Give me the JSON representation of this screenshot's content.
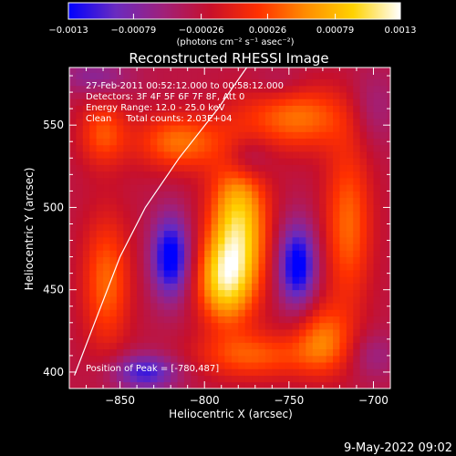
{
  "colorbar": {
    "ticks": [
      "-0.0013",
      "-0.00079",
      "-0.00026",
      "0.00026",
      "0.00079",
      "0.0013"
    ],
    "units": "(photons cm⁻² s⁻¹ asec⁻²)",
    "range": [
      -0.0013,
      0.0013
    ],
    "colors": [
      "#0000ff",
      "#6a2bbf",
      "#a0207a",
      "#c8102a",
      "#ff3000",
      "#ff8c00",
      "#ffd200",
      "#ffffff"
    ]
  },
  "chart_data": {
    "type": "heatmap",
    "title": "Reconstructed RHESSI Image",
    "xlabel": "Heliocentric X (arcsec)",
    "ylabel": "Heliocentric Y (arcsec)",
    "xlim": [
      -880,
      -690
    ],
    "ylim": [
      390,
      585
    ],
    "xticks": [
      -850,
      -800,
      -750,
      -700
    ],
    "yticks": [
      400,
      450,
      500,
      550
    ],
    "xtick_labels": [
      "−850",
      "−800",
      "−750",
      "−700"
    ],
    "ytick_labels": [
      "400",
      "450",
      "500",
      "550"
    ],
    "grid_step_arcsec": 4,
    "annotations": [
      "27-Feb-2011 00:52:12.000 to 00:58:12.000",
      "Detectors: 3F 4F 5F 6F 7F 8F, Att 0",
      "Energy Range: 12.0 - 25.0 keV",
      "Clean     Total counts: 2.03E+04"
    ],
    "peak_label": "Position of Peak = [-780,487]",
    "peak": [
      -780,
      487
    ],
    "limb_curve": [
      [
        -877,
        398
      ],
      [
        -865,
        430
      ],
      [
        -850,
        470
      ],
      [
        -835,
        500
      ],
      [
        -815,
        530
      ],
      [
        -792,
        560
      ],
      [
        -775,
        585
      ]
    ],
    "field_features": [
      {
        "x": -780,
        "y": 487,
        "value": 0.0013,
        "sx": 12,
        "sy": 32
      },
      {
        "x": -790,
        "y": 455,
        "value": 0.0009,
        "sx": 11,
        "sy": 18
      },
      {
        "x": -815,
        "y": 540,
        "value": 0.00075,
        "sx": 18,
        "sy": 12
      },
      {
        "x": -745,
        "y": 555,
        "value": 0.00075,
        "sx": 22,
        "sy": 14
      },
      {
        "x": -858,
        "y": 455,
        "value": 0.0007,
        "sx": 10,
        "sy": 28
      },
      {
        "x": -715,
        "y": 490,
        "value": 0.0007,
        "sx": 10,
        "sy": 35
      },
      {
        "x": -770,
        "y": 410,
        "value": 0.0006,
        "sx": 25,
        "sy": 10
      },
      {
        "x": -730,
        "y": 420,
        "value": 0.0007,
        "sx": 12,
        "sy": 15
      },
      {
        "x": -860,
        "y": 545,
        "value": 0.0006,
        "sx": 10,
        "sy": 14
      },
      {
        "x": -820,
        "y": 470,
        "value": -0.0012,
        "sx": 8,
        "sy": 18
      },
      {
        "x": -745,
        "y": 465,
        "value": -0.0012,
        "sx": 8,
        "sy": 18
      },
      {
        "x": -835,
        "y": 400,
        "value": -0.0009,
        "sx": 14,
        "sy": 8
      },
      {
        "x": -865,
        "y": 580,
        "value": -0.0005,
        "sx": 15,
        "sy": 8
      },
      {
        "x": -775,
        "y": 530,
        "value": -0.0006,
        "sx": 10,
        "sy": 10
      },
      {
        "x": -700,
        "y": 560,
        "value": -0.0004,
        "sx": 10,
        "sy": 16
      },
      {
        "x": -755,
        "y": 575,
        "value": -0.0003,
        "sx": 12,
        "sy": 8
      },
      {
        "x": -700,
        "y": 410,
        "value": -0.0004,
        "sx": 10,
        "sy": 10
      }
    ]
  },
  "footer": {
    "date": "9-May-2022 09:02"
  }
}
